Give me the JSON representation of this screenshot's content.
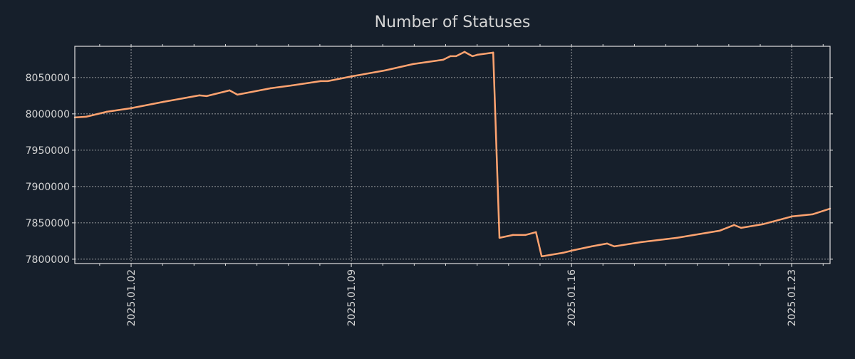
{
  "chart_data": {
    "type": "line",
    "title": "Number of Statuses",
    "xlabel": "",
    "ylabel": "",
    "x_unit": "days since 2025-01-01 00:00",
    "xlim": [
      -0.79,
      23.22
    ],
    "ylim": [
      7794000,
      8093000
    ],
    "grid": true,
    "colors": {
      "background": "#161f2b",
      "line": "#ffa370",
      "axis": "#e0e0e0",
      "text": "#d4d4d4",
      "grid": "#bfbfbf"
    },
    "x_ticks": [
      {
        "value": 1,
        "label": "2025.01.02"
      },
      {
        "value": 8,
        "label": "2025.01.09"
      },
      {
        "value": 15,
        "label": "2025.01.16"
      },
      {
        "value": 22,
        "label": "2025.01.23"
      }
    ],
    "y_ticks": [
      {
        "value": 7800000,
        "label": "7800000"
      },
      {
        "value": 7850000,
        "label": "7850000"
      },
      {
        "value": 7900000,
        "label": "7900000"
      },
      {
        "value": 7950000,
        "label": "7950000"
      },
      {
        "value": 8000000,
        "label": "8000000"
      },
      {
        "value": 8050000,
        "label": "8050000"
      }
    ],
    "series": [
      {
        "name": "Number of Statuses",
        "x": [
          -0.79,
          -0.43,
          0.23,
          1.0,
          2.04,
          3.17,
          3.4,
          4.13,
          4.38,
          5.44,
          6.12,
          7.03,
          7.25,
          8.05,
          9.07,
          9.97,
          10.92,
          11.15,
          11.33,
          11.6,
          11.85,
          12.01,
          12.51,
          12.71,
          13.14,
          13.53,
          13.87,
          14.05,
          14.73,
          15.0,
          15.64,
          16.13,
          16.36,
          17.22,
          18.35,
          19.71,
          20.17,
          20.39,
          21.07,
          21.75,
          22.0,
          22.66,
          23.22
        ],
        "y": [
          7995100,
          7996080,
          8002940,
          8007840,
          8016670,
          8025490,
          8024510,
          8032350,
          8026470,
          8035290,
          8039220,
          8045100,
          8045100,
          8051960,
          8059800,
          8068630,
          8074510,
          8079410,
          8079410,
          8085290,
          8079410,
          8081370,
          8084310,
          7829410,
          7833330,
          7833330,
          7837250,
          7803920,
          7808820,
          7811760,
          7817650,
          7821570,
          7817650,
          7823530,
          7829410,
          7839220,
          7847060,
          7843140,
          7848040,
          7855880,
          7858820,
          7861760,
          7869610
        ]
      }
    ]
  }
}
